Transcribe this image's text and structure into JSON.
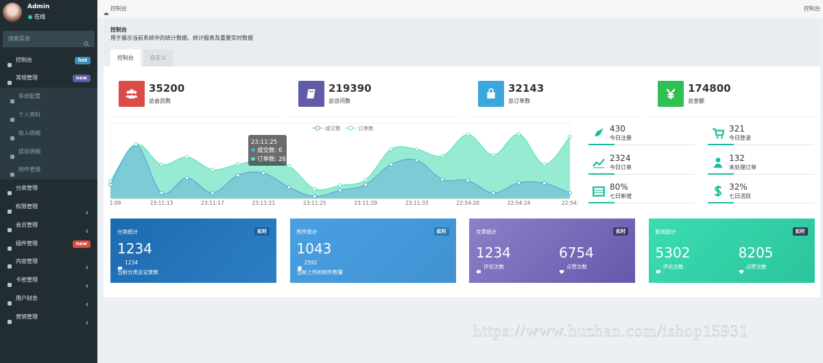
{
  "sidebar": {
    "user": "Admin",
    "status": "在线",
    "search": "搜索菜单",
    "menu": [
      {
        "label": "控制台",
        "badge": "hot",
        "badge_color": "#3c8dbc"
      },
      {
        "label": "常规管理",
        "badge": "new",
        "badge_color": "#605ca8"
      },
      {
        "label": "系统配置",
        "sub": true
      },
      {
        "label": "个人资料",
        "sub": true
      },
      {
        "label": "收入明细",
        "sub": true
      },
      {
        "label": "提现明细",
        "sub": true
      },
      {
        "label": "附件管理",
        "sub": true
      },
      {
        "label": "分类管理"
      },
      {
        "label": "权限管理",
        "arrow": true
      },
      {
        "label": "会员管理",
        "arrow": true
      },
      {
        "label": "插件管理",
        "badge": "new",
        "badge_color": "#dd4b39"
      },
      {
        "label": "内容管理",
        "arrow": true
      },
      {
        "label": "卡密管理",
        "arrow": true
      },
      {
        "label": "用户财务",
        "arrow": true
      },
      {
        "label": "营销管理",
        "arrow": true
      }
    ]
  },
  "header": {
    "breadcrumb": "控制台",
    "right": "控制台",
    "title": "控制台",
    "desc": "用于展示当前系统中的统计数据、统计报表及重要实时数据",
    "tabs": [
      "控制台",
      "自定义"
    ]
  },
  "stats": [
    {
      "value": 35200,
      "label": "总会员数",
      "color": "#dd4b49"
    },
    {
      "value": 219390,
      "label": "总访问数",
      "color": "#605ca8"
    },
    {
      "value": 32143,
      "label": "总订单数",
      "color": "#3ca7dc"
    },
    {
      "value": 174800,
      "label": "总金额",
      "color": "#2fbf52"
    }
  ],
  "chart_data": {
    "type": "area",
    "categories": [
      "1:09",
      null,
      "23:11:13",
      null,
      "23:11:17",
      null,
      "23:11:21",
      null,
      "23:11:25",
      null,
      "23:11:29",
      null,
      "23:11:33",
      null,
      "22:54:20",
      null,
      "22:54:24",
      null,
      "22:54:"
    ],
    "series": [
      {
        "name": "成交数",
        "color": "#5ba5d8",
        "values": [
          37,
          142,
          15,
          55,
          15,
          62,
          68,
          30,
          6,
          22,
          37,
          91,
          102,
          51,
          48,
          15,
          42,
          41,
          15
        ]
      },
      {
        "name": "订单数",
        "color": "#5fe0bc",
        "values": [
          46,
          144,
          90,
          110,
          77,
          91,
          101,
          86,
          26,
          35,
          50,
          131,
          131,
          113,
          170,
          115,
          171,
          91,
          164
        ]
      }
    ],
    "ylim": [
      0,
      196
    ],
    "tooltip": {
      "title": "23:11:25",
      "items": [
        "成交数: 6",
        "订单数: 26"
      ]
    }
  },
  "mini_stats": [
    {
      "value": "430",
      "label": "今日注册"
    },
    {
      "value": "321",
      "label": "今日登录"
    },
    {
      "value": "2324",
      "label": "今日订单"
    },
    {
      "value": "132",
      "label": "未处理订单"
    },
    {
      "value": "80%",
      "label": "七日新增"
    },
    {
      "value": "32%",
      "label": "七日活跃"
    }
  ],
  "cards": [
    {
      "title": "分类统计",
      "badge": "实时",
      "bg": "linear-gradient(135deg,#1d6ab0,#2c7fc3)",
      "badge_bg": "#1b5e98",
      "value": "1234",
      "sub": "1234",
      "desc": "当前分类总记录数"
    },
    {
      "title": "附件统计",
      "badge": "实时",
      "bg": "linear-gradient(135deg,#4a9fe0,#3f93d3)",
      "badge_bg": "#2f78b2",
      "value": "1043",
      "sub": "2592",
      "desc": "当前上传的附件数量"
    },
    {
      "title": "文章统计",
      "badge": "实时",
      "bg": "linear-gradient(135deg,#8c80c8,#6857ab)",
      "badge_bg": "#3e3a6a",
      "columns": [
        {
          "value": "1234",
          "label": "评论次数"
        },
        {
          "value": "6754",
          "label": "点赞次数"
        }
      ]
    },
    {
      "title": "新闻统计",
      "badge": "实时",
      "bg": "linear-gradient(135deg,#3bdcb2,#2cc49c)",
      "badge_bg": "#2c3e50",
      "columns": [
        {
          "value": "5302",
          "label": "评论次数"
        },
        {
          "value": "8205",
          "label": "点赞次数"
        }
      ]
    }
  ],
  "watermark": "https://www.huzhan.com/ishop15931"
}
